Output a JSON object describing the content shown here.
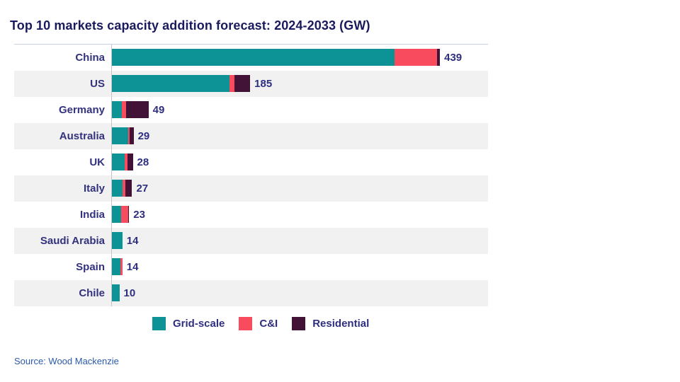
{
  "title": "Top 10 markets capacity addition forecast: 2024-2033 (GW)",
  "source": "Source: Wood Mackenzie",
  "colors": {
    "grid_scale": "#0d9296",
    "cai": "#f84b5e",
    "residential": "#421337",
    "title_text": "#1a1a5e",
    "label_text": "#32327e",
    "band": "#f1f1f2",
    "source_text": "#2b5aa8"
  },
  "legend": [
    {
      "label": "Grid-scale",
      "color": "#0d9296"
    },
    {
      "label": "C&I",
      "color": "#f84b5e"
    },
    {
      "label": "Residential",
      "color": "#421337"
    }
  ],
  "chart_data": {
    "type": "bar",
    "orientation": "horizontal",
    "stacked": true,
    "title": "Top 10 markets capacity addition forecast: 2024-2033 (GW)",
    "xlabel": "",
    "ylabel": "",
    "xlim": [
      0,
      500
    ],
    "grid": false,
    "legend_position": "bottom",
    "categories": [
      "China",
      "US",
      "Germany",
      "Australia",
      "UK",
      "Italy",
      "India",
      "Saudi Arabia",
      "Spain",
      "Chile"
    ],
    "totals": [
      439,
      185,
      49,
      29,
      28,
      27,
      23,
      14,
      14,
      10
    ],
    "series": [
      {
        "name": "Grid-scale",
        "color": "#0d9296",
        "values": [
          378,
          157,
          13,
          22,
          17,
          14,
          12,
          14,
          11,
          10
        ]
      },
      {
        "name": "C&I",
        "color": "#f84b5e",
        "values": [
          57,
          7,
          6,
          2,
          4,
          4,
          10,
          0,
          3,
          0
        ]
      },
      {
        "name": "Residential",
        "color": "#421337",
        "values": [
          4,
          21,
          30,
          5,
          7,
          9,
          1,
          0,
          0,
          0
        ]
      }
    ]
  }
}
